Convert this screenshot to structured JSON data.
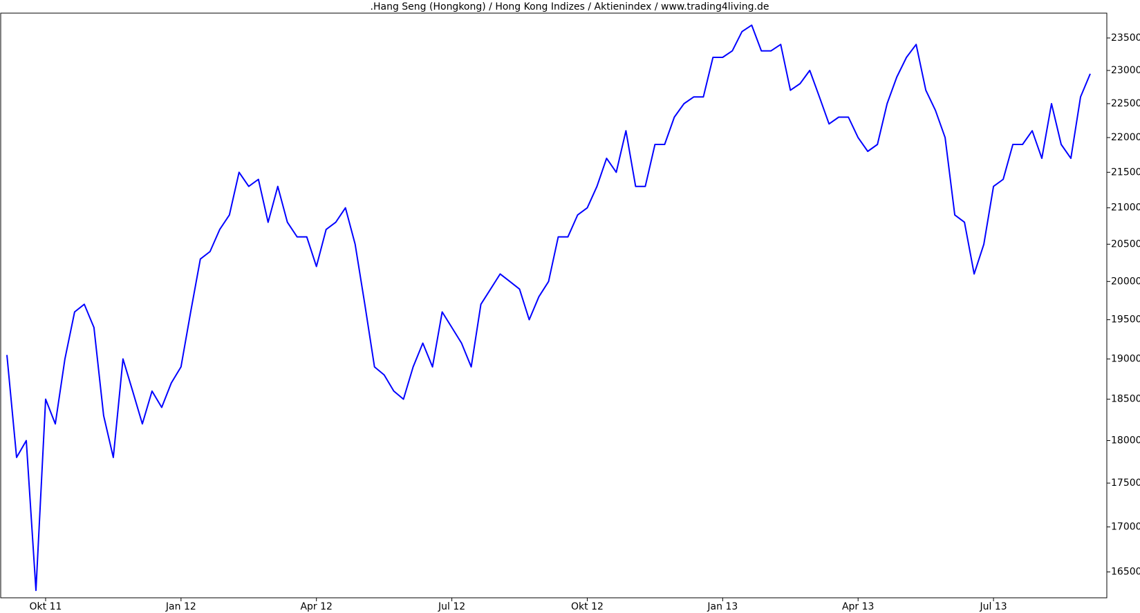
{
  "chart_data": {
    "type": "line",
    "title": ".Hang Seng (Hongkong) / Hong Kong Indizes / Aktienindex / www.trading4living.de",
    "categories": [
      null,
      null,
      null,
      null,
      "Okt 11",
      null,
      null,
      null,
      null,
      null,
      null,
      null,
      null,
      null,
      null,
      null,
      null,
      null,
      "Jan 12",
      null,
      null,
      null,
      null,
      null,
      null,
      null,
      null,
      null,
      null,
      null,
      null,
      null,
      "Apr 12",
      null,
      null,
      null,
      null,
      null,
      null,
      null,
      null,
      null,
      null,
      null,
      null,
      null,
      "Jul 12",
      null,
      null,
      null,
      null,
      null,
      null,
      null,
      null,
      null,
      null,
      null,
      null,
      null,
      "Okt 12",
      null,
      null,
      null,
      null,
      null,
      null,
      null,
      null,
      null,
      null,
      null,
      null,
      null,
      "Jan 13",
      null,
      null,
      null,
      null,
      null,
      null,
      null,
      null,
      null,
      null,
      null,
      null,
      null,
      "Apr 13",
      null,
      null,
      null,
      null,
      null,
      null,
      null,
      null,
      null,
      null,
      null,
      null,
      null,
      "Jul 13",
      null,
      null,
      null,
      null,
      null,
      null,
      null,
      null,
      null,
      null
    ],
    "series": [
      {
        "color": "#0000ff",
        "values": [
          19050,
          17800,
          18000,
          16300,
          18500,
          18200,
          19000,
          19600,
          19700,
          19400,
          18300,
          17800,
          19000,
          18600,
          18200,
          18600,
          18400,
          18700,
          18900,
          19600,
          20300,
          20400,
          20700,
          20900,
          21500,
          21300,
          21400,
          20800,
          21300,
          20800,
          20600,
          20600,
          20200,
          20700,
          20800,
          21000,
          20500,
          19700,
          18900,
          18800,
          18600,
          18500,
          18900,
          19200,
          18900,
          19600,
          19400,
          19200,
          18900,
          19700,
          19900,
          20100,
          20000,
          19900,
          19500,
          19800,
          20000,
          20600,
          20600,
          20900,
          21000,
          21300,
          21700,
          21500,
          22100,
          21300,
          21300,
          21900,
          21900,
          22300,
          22500,
          22600,
          22600,
          23200,
          23200,
          23300,
          23600,
          23700,
          23300,
          23300,
          23400,
          22700,
          22800,
          23000,
          22600,
          22200,
          22300,
          22300,
          22000,
          21800,
          21900,
          22500,
          22900,
          23200,
          23400,
          22700,
          22400,
          22000,
          20900,
          20800,
          20100,
          20500,
          21300,
          21400,
          21900,
          21900,
          22100,
          21700,
          22500,
          21900,
          21700,
          22600,
          22950
        ]
      }
    ],
    "ylim": [
      16220,
      23890
    ],
    "yticks": [
      16500,
      17000,
      17500,
      18000,
      18500,
      19000,
      19500,
      20000,
      20500,
      21000,
      21500,
      22000,
      22500,
      23000,
      23500
    ],
    "log_scale": true,
    "grid": false
  }
}
